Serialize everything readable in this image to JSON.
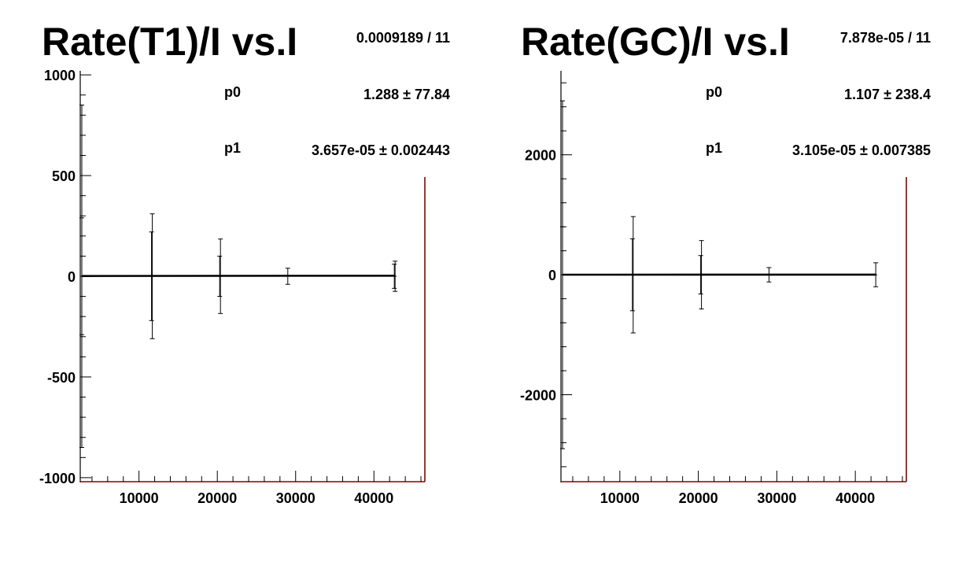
{
  "chart_data": [
    {
      "type": "scatter",
      "title": "Rate(T1)/I vs.I",
      "xlabel": "",
      "ylabel": "",
      "xlim": [
        2500,
        46500
      ],
      "ylim": [
        -1020,
        1020
      ],
      "x_ticks": [
        10000,
        20000,
        30000,
        40000
      ],
      "x_tick_labels": [
        "10000",
        "20000",
        "30000",
        "40000"
      ],
      "y_ticks": [
        -1000,
        -500,
        0,
        500,
        1000
      ],
      "y_tick_labels": [
        "-1000",
        "-500",
        "0",
        "500",
        "1000"
      ],
      "grid": false,
      "stats": {
        "chi2ndf": "0.0009189 / 11",
        "p0_label": "p0",
        "p0_value": "1.288 ± 77.84",
        "p1_label": "p1",
        "p1_value": "3.657e-05 ± 0.002443"
      },
      "fit": {
        "p0": 1.288,
        "p1": 3.657e-05,
        "x_range": [
          2700,
          42700
        ]
      },
      "points": [
        {
          "x": 2700,
          "y": 0,
          "err": 290
        },
        {
          "x": 2700,
          "y": 0,
          "err": 850
        },
        {
          "x": 11600,
          "y": 0,
          "err": 220
        },
        {
          "x": 11700,
          "y": 0,
          "err": 310
        },
        {
          "x": 20300,
          "y": 0,
          "err": 100
        },
        {
          "x": 20400,
          "y": 0,
          "err": 185
        },
        {
          "x": 29000,
          "y": 0,
          "err": 40
        },
        {
          "x": 42600,
          "y": 0,
          "err": 60
        },
        {
          "x": 42700,
          "y": 0,
          "err": 75
        }
      ]
    },
    {
      "type": "scatter",
      "title": "Rate(GC)/I vs.I",
      "xlabel": "",
      "ylabel": "",
      "xlim": [
        2500,
        46500
      ],
      "ylim": [
        -3450,
        3400
      ],
      "x_ticks": [
        10000,
        20000,
        30000,
        40000
      ],
      "x_tick_labels": [
        "10000",
        "20000",
        "30000",
        "40000"
      ],
      "y_ticks": [
        -2000,
        0,
        2000
      ],
      "y_tick_labels": [
        "-2000",
        "0",
        "2000"
      ],
      "grid": false,
      "stats": {
        "chi2ndf": "7.878e-05 / 11",
        "p0_label": "p0",
        "p0_value": "1.107 ± 238.4",
        "p1_label": "p1",
        "p1_value": "3.105e-05 ± 0.007385"
      },
      "fit": {
        "p0": 1.107,
        "p1": 3.105e-05,
        "x_range": [
          2700,
          42600
        ]
      },
      "points": [
        {
          "x": 2700,
          "y": 0,
          "err": 800
        },
        {
          "x": 2700,
          "y": 0,
          "err": 2900
        },
        {
          "x": 11600,
          "y": 0,
          "err": 600
        },
        {
          "x": 11700,
          "y": 0,
          "err": 970
        },
        {
          "x": 20300,
          "y": 0,
          "err": 320
        },
        {
          "x": 20400,
          "y": 0,
          "err": 570
        },
        {
          "x": 29000,
          "y": 0,
          "err": 120
        },
        {
          "x": 42600,
          "y": 0,
          "err": 200
        }
      ]
    }
  ]
}
